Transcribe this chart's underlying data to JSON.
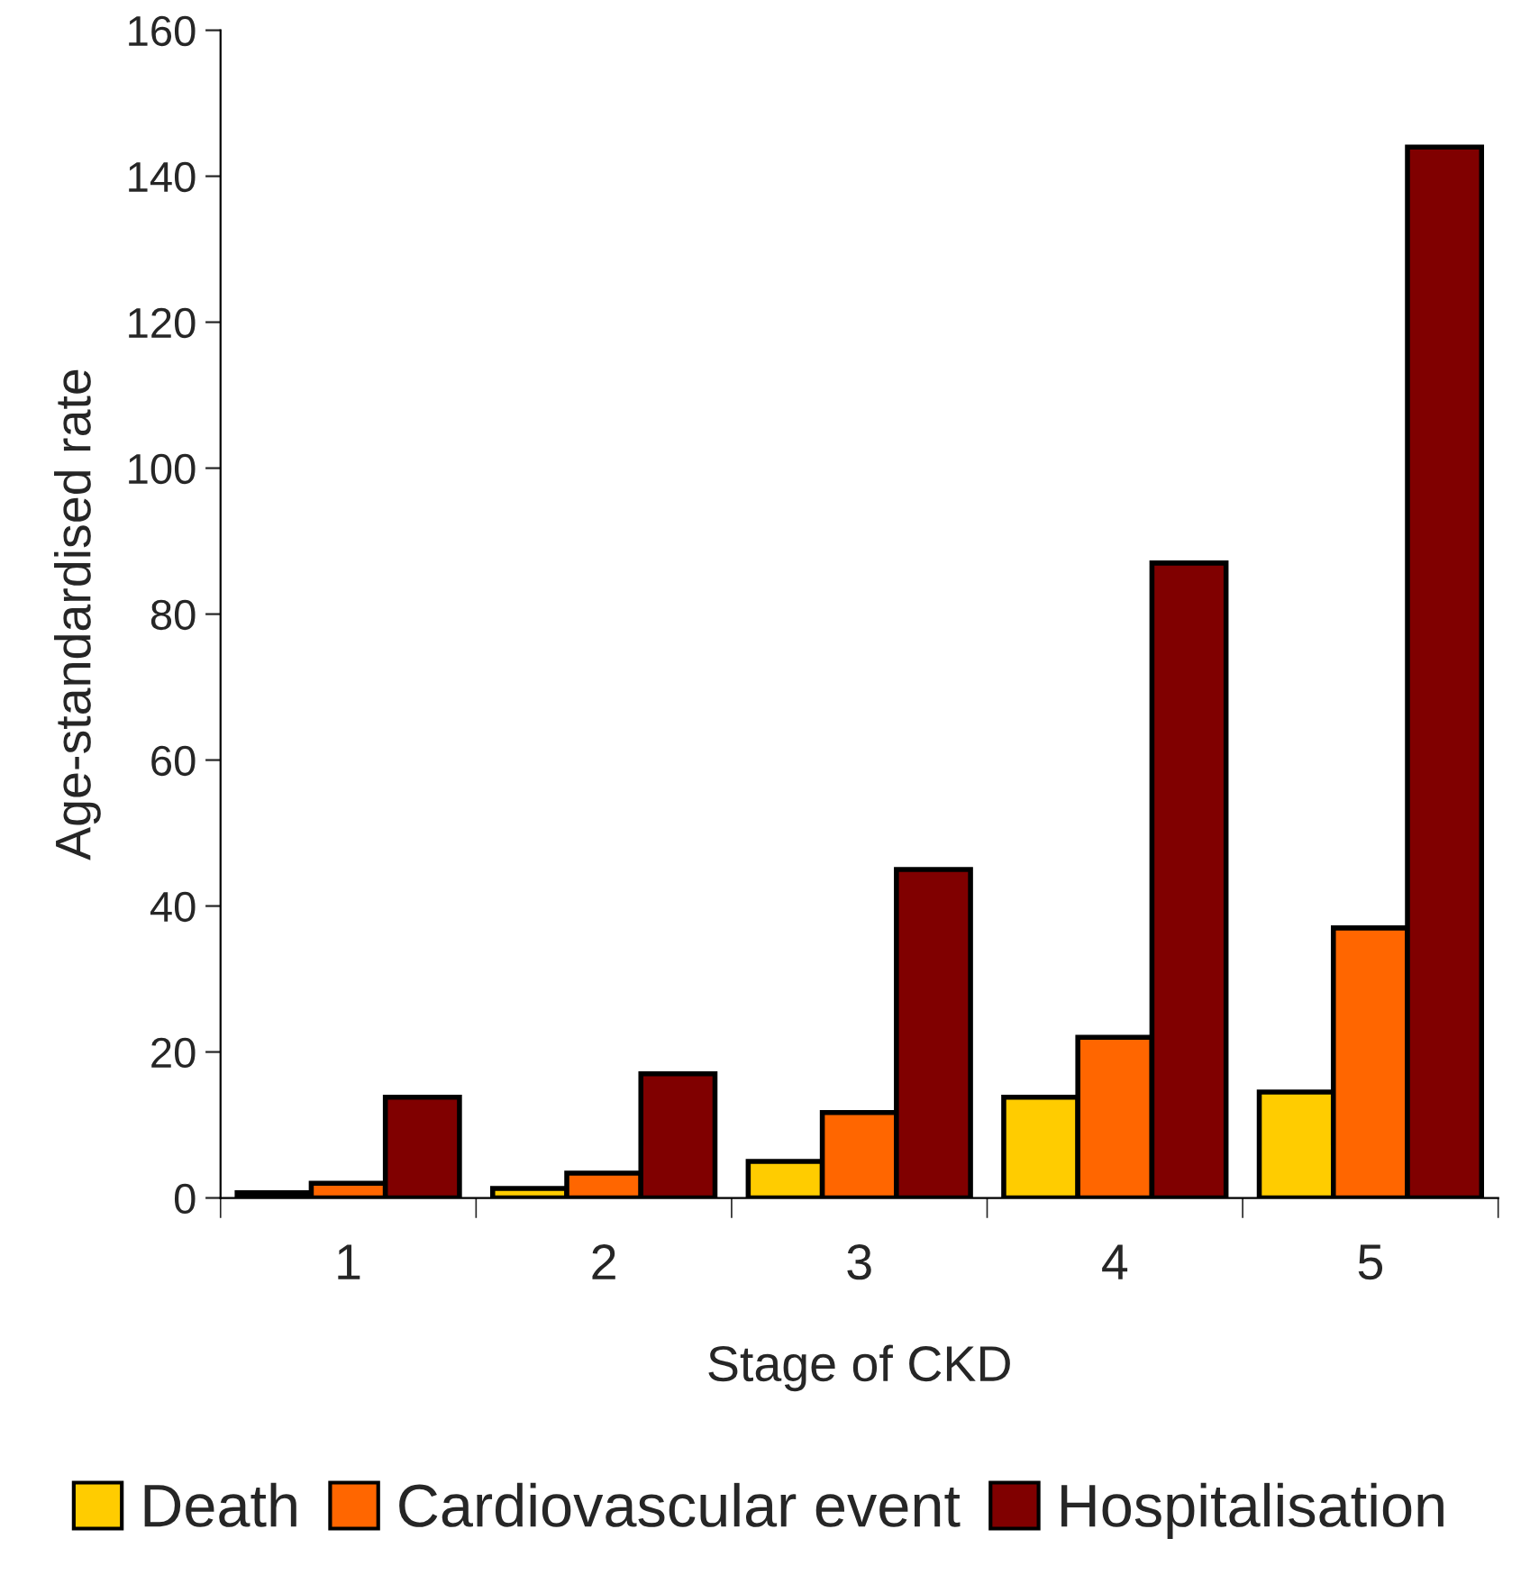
{
  "chart_data": {
    "type": "bar",
    "xlabel": "Stage of CKD",
    "ylabel": "Age-standardised rate",
    "categories": [
      "1",
      "2",
      "3",
      "4",
      "5"
    ],
    "series": [
      {
        "name": "Death",
        "color": "#ffcc00",
        "values": [
          0.7,
          1.3,
          5,
          13.8,
          14.5
        ]
      },
      {
        "name": "Cardiovascular event",
        "color": "#ff6600",
        "values": [
          2,
          3.4,
          11.7,
          22,
          37
        ]
      },
      {
        "name": "Hospitalisation",
        "color": "#800000",
        "values": [
          13.8,
          17,
          45,
          87,
          144
        ]
      }
    ],
    "ylim": [
      0,
      160
    ],
    "yticks": [
      0,
      20,
      40,
      60,
      80,
      100,
      120,
      140,
      160
    ],
    "grid": false,
    "legend": "bottom"
  }
}
